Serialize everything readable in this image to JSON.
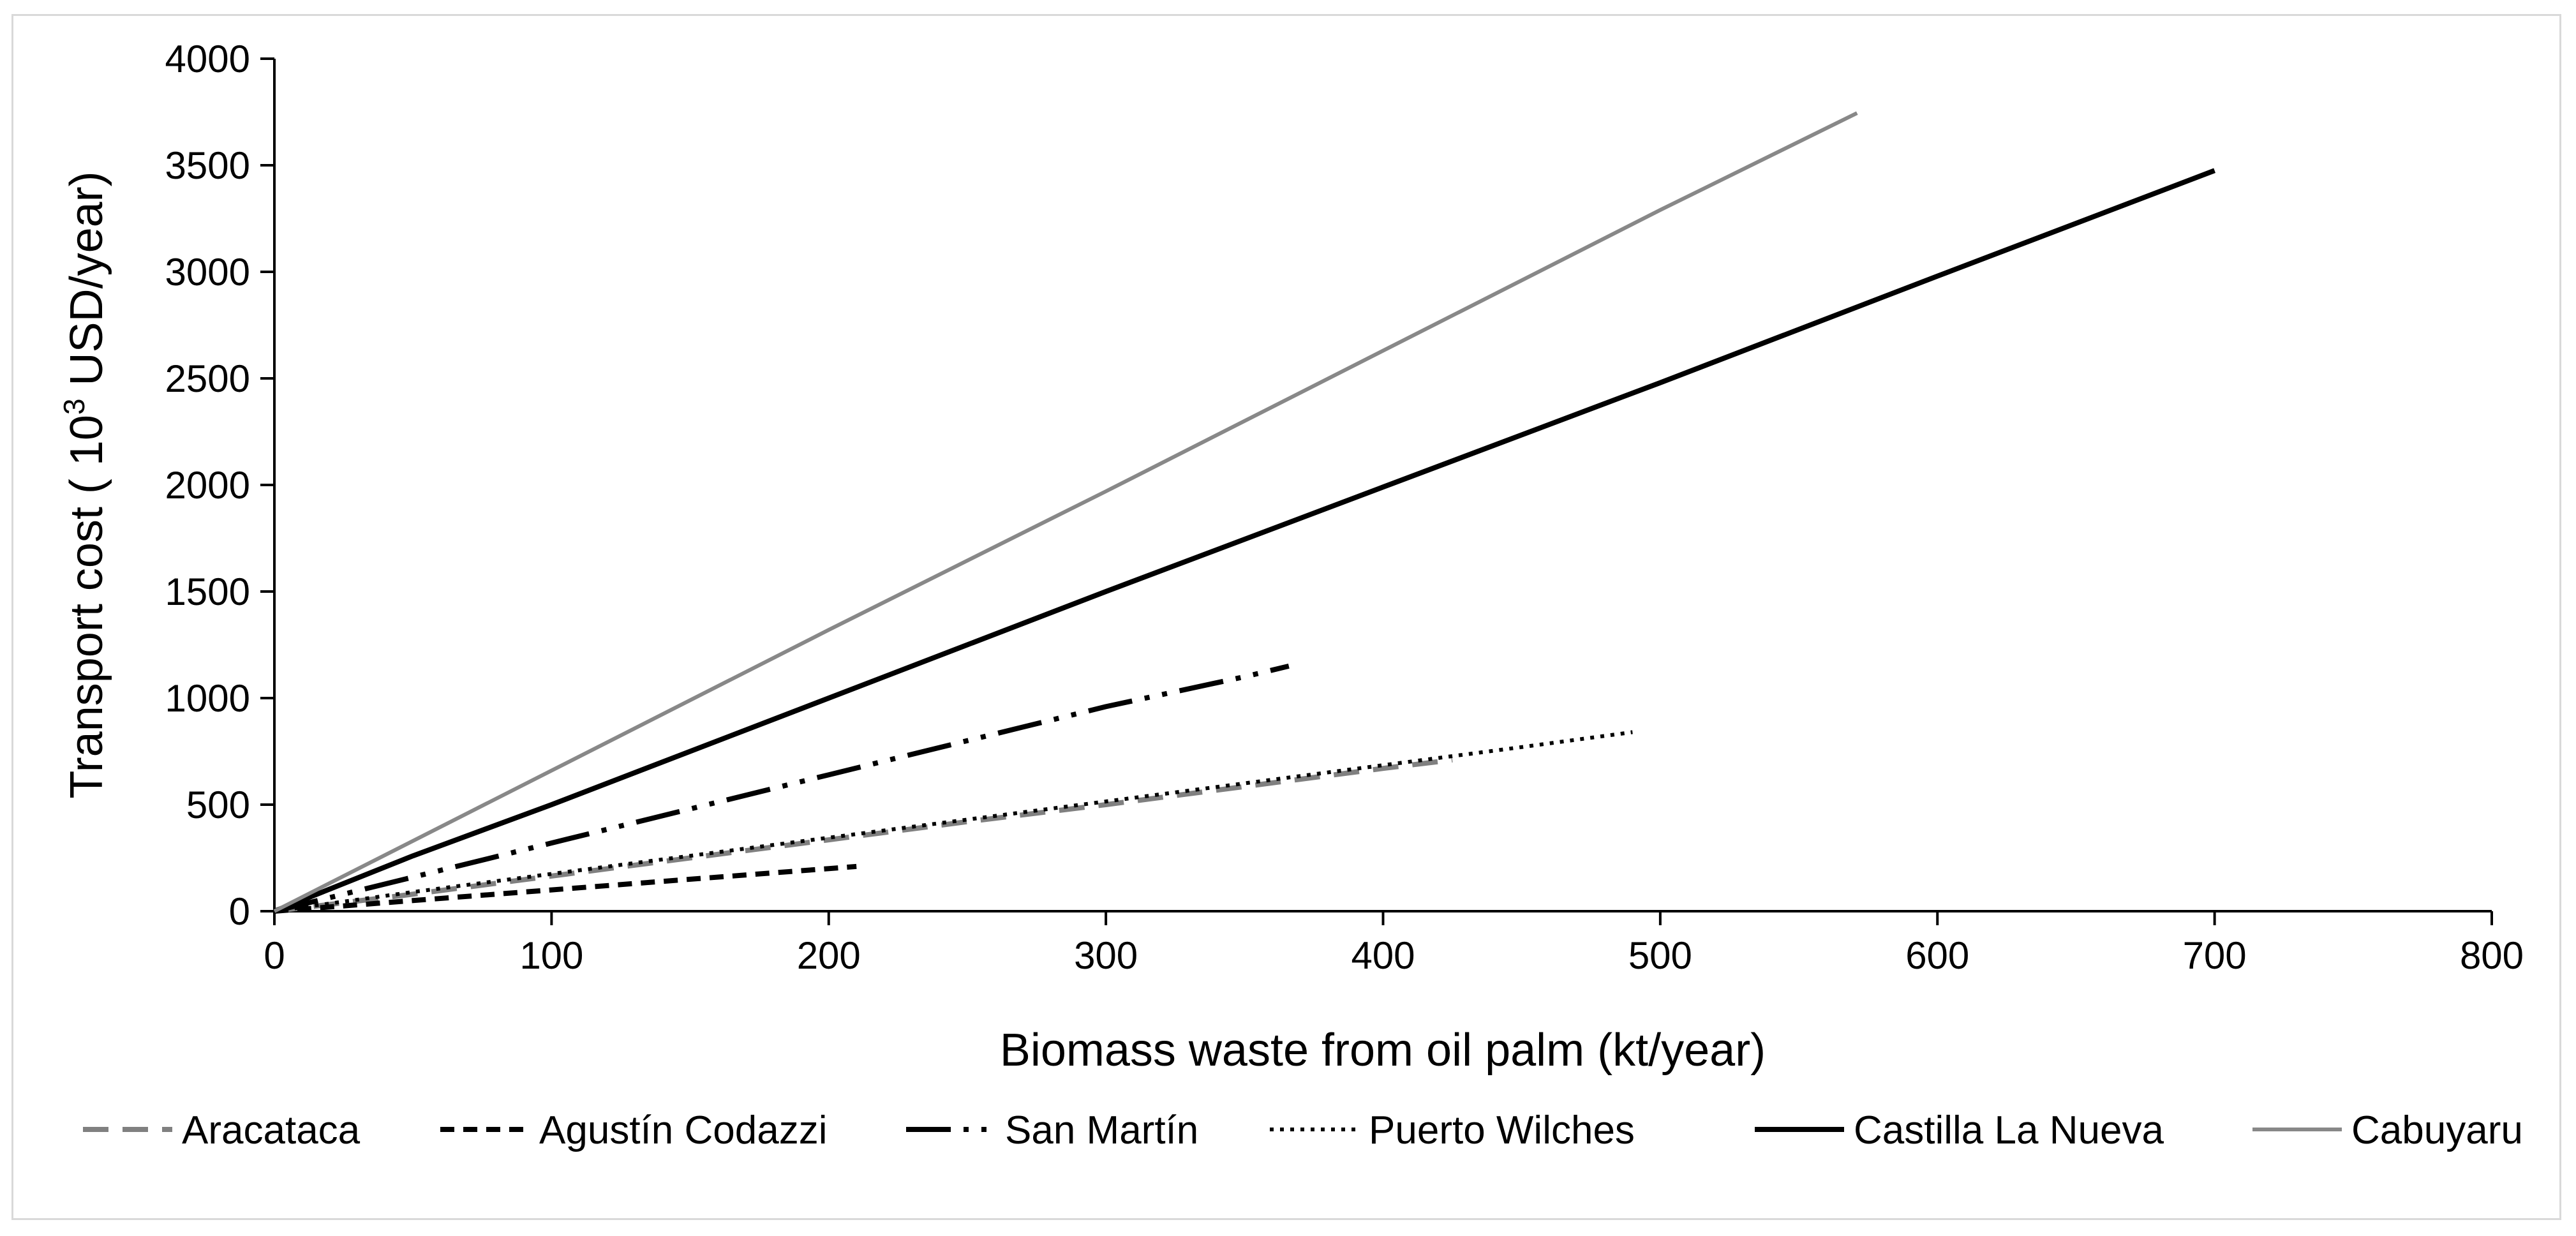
{
  "chart_data": {
    "type": "line",
    "title": "",
    "xlabel": "Biomass waste from oil palm (kt/year)",
    "ylabel": {
      "prefix": "Transport cost ( 10",
      "superscript": "3",
      "suffix": " USD/year)"
    },
    "xlim": [
      0,
      800
    ],
    "ylim": [
      0,
      4000
    ],
    "x_ticks": [
      "0",
      "100",
      "200",
      "300",
      "400",
      "500",
      "600",
      "700",
      "800"
    ],
    "y_ticks": [
      "0",
      "500",
      "1000",
      "1500",
      "2000",
      "2500",
      "3000",
      "3500",
      "4000"
    ],
    "grid": false,
    "legend_position": "bottom",
    "series": [
      {
        "name": "Aracataca",
        "color": "#808080",
        "dash": "dash",
        "x": [
          0,
          50,
          100,
          150,
          200,
          250,
          300,
          350,
          400,
          425
        ],
        "y": [
          0,
          80,
          165,
          250,
          335,
          420,
          500,
          585,
          670,
          710
        ]
      },
      {
        "name": "Agustín Codazzi",
        "color": "#000000",
        "dash": "short-dash",
        "x": [
          0,
          50,
          100,
          150,
          200,
          210
        ],
        "y": [
          0,
          50,
          100,
          150,
          200,
          210
        ]
      },
      {
        "name": "San Martín",
        "color": "#000000",
        "dash": "long-dash-dot-dot",
        "x": [
          0,
          50,
          100,
          150,
          200,
          250,
          300,
          350,
          366
        ],
        "y": [
          0,
          160,
          320,
          480,
          640,
          800,
          960,
          1100,
          1150
        ]
      },
      {
        "name": "Puerto Wilches",
        "color": "#000000",
        "dash": "dot",
        "x": [
          0,
          50,
          100,
          150,
          200,
          250,
          300,
          350,
          400,
          450,
          490
        ],
        "y": [
          0,
          90,
          175,
          260,
          345,
          430,
          515,
          600,
          685,
          770,
          840
        ]
      },
      {
        "name": "Castilla La Nueva",
        "color": "#000000",
        "dash": "solid-thick",
        "x": [
          0,
          50,
          100,
          200,
          300,
          400,
          500,
          600,
          700
        ],
        "y": [
          0,
          260,
          500,
          1000,
          1500,
          1990,
          2480,
          2980,
          3475
        ]
      },
      {
        "name": "Cabuyaru",
        "color": "#888888",
        "dash": "solid-thin",
        "x": [
          0,
          100,
          200,
          300,
          400,
          500,
          571
        ],
        "y": [
          0,
          660,
          1320,
          1970,
          2630,
          3290,
          3745
        ]
      }
    ]
  }
}
